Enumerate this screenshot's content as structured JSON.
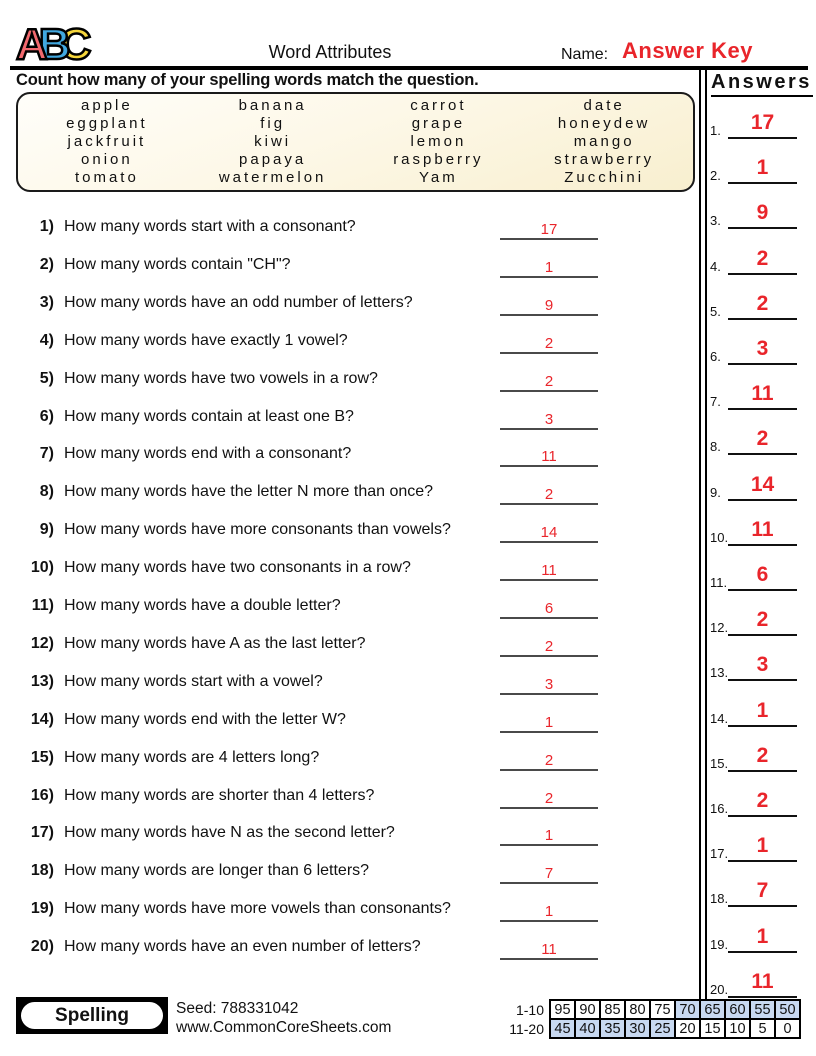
{
  "header": {
    "logo_letters": [
      {
        "char": "A",
        "color": "#f2696e"
      },
      {
        "char": "B",
        "color": "#41a8e0"
      },
      {
        "char": "C",
        "color": "#f6d63c"
      }
    ],
    "title": "Word Attributes",
    "name_label": "Name:",
    "name_value": "Answer Key"
  },
  "instruction": "Count how many of your spelling words match the question.",
  "word_bank": {
    "rows": [
      [
        "apple",
        "banana",
        "carrot",
        "date"
      ],
      [
        "eggplant",
        "fig",
        "grape",
        "honeydew"
      ],
      [
        "jackfruit",
        "kiwi",
        "lemon",
        "mango"
      ],
      [
        "onion",
        "papaya",
        "raspberry",
        "strawberry"
      ],
      [
        "tomato",
        "watermelon",
        "Yam",
        "Zucchini"
      ]
    ]
  },
  "questions": [
    {
      "num": "1)",
      "text": "How many words start with a consonant?",
      "answer": "17"
    },
    {
      "num": "2)",
      "text": "How many words contain \"CH\"?",
      "answer": "1"
    },
    {
      "num": "3)",
      "text": "How many words have an odd number of letters?",
      "answer": "9"
    },
    {
      "num": "4)",
      "text": "How many words have exactly 1 vowel?",
      "answer": "2"
    },
    {
      "num": "5)",
      "text": "How many words have two vowels in a row?",
      "answer": "2"
    },
    {
      "num": "6)",
      "text": "How many words contain at least one B?",
      "answer": "3"
    },
    {
      "num": "7)",
      "text": "How many words end with a consonant?",
      "answer": "11"
    },
    {
      "num": "8)",
      "text": "How many words have the letter N more than once?",
      "answer": "2"
    },
    {
      "num": "9)",
      "text": "How many words have more consonants than vowels?",
      "answer": "14"
    },
    {
      "num": "10)",
      "text": "How many words have two consonants in a row?",
      "answer": "11"
    },
    {
      "num": "11)",
      "text": "How many words have a double letter?",
      "answer": "6"
    },
    {
      "num": "12)",
      "text": "How many words have A as the last letter?",
      "answer": "2"
    },
    {
      "num": "13)",
      "text": "How many words start with a vowel?",
      "answer": "3"
    },
    {
      "num": "14)",
      "text": "How many words end with the letter W?",
      "answer": "1"
    },
    {
      "num": "15)",
      "text": "How many words are 4 letters long?",
      "answer": "2"
    },
    {
      "num": "16)",
      "text": "How many words are shorter than 4 letters?",
      "answer": "2"
    },
    {
      "num": "17)",
      "text": "How many words have N as the second letter?",
      "answer": "1"
    },
    {
      "num": "18)",
      "text": "How many words are longer than 6 letters?",
      "answer": "7"
    },
    {
      "num": "19)",
      "text": "How many words have more vowels than consonants?",
      "answer": "1"
    },
    {
      "num": "20)",
      "text": "How many words have an even number of letters?",
      "answer": "11"
    }
  ],
  "answers_panel": {
    "title": "Answers",
    "items": [
      {
        "num": "1.",
        "value": "17"
      },
      {
        "num": "2.",
        "value": "1"
      },
      {
        "num": "3.",
        "value": "9"
      },
      {
        "num": "4.",
        "value": "2"
      },
      {
        "num": "5.",
        "value": "2"
      },
      {
        "num": "6.",
        "value": "3"
      },
      {
        "num": "7.",
        "value": "11"
      },
      {
        "num": "8.",
        "value": "2"
      },
      {
        "num": "9.",
        "value": "14"
      },
      {
        "num": "10.",
        "value": "11"
      },
      {
        "num": "11.",
        "value": "6"
      },
      {
        "num": "12.",
        "value": "2"
      },
      {
        "num": "13.",
        "value": "3"
      },
      {
        "num": "14.",
        "value": "1"
      },
      {
        "num": "15.",
        "value": "2"
      },
      {
        "num": "16.",
        "value": "2"
      },
      {
        "num": "17.",
        "value": "1"
      },
      {
        "num": "18.",
        "value": "7"
      },
      {
        "num": "19.",
        "value": "1"
      },
      {
        "num": "20.",
        "value": "11"
      }
    ]
  },
  "footer": {
    "badge": "Spelling",
    "seed": "Seed: 788331042",
    "site": "www.CommonCoreSheets.com",
    "score_table": {
      "rows": [
        {
          "label": "1-10",
          "values": [
            "95",
            "90",
            "85",
            "80",
            "75",
            "70",
            "65",
            "60",
            "55",
            "50"
          ],
          "highlight": [
            false,
            false,
            false,
            false,
            false,
            true,
            true,
            true,
            true,
            true
          ]
        },
        {
          "label": "11-20",
          "values": [
            "45",
            "40",
            "35",
            "30",
            "25",
            "20",
            "15",
            "10",
            "5",
            "0"
          ],
          "highlight": [
            true,
            true,
            true,
            true,
            true,
            false,
            false,
            false,
            false,
            false
          ]
        }
      ]
    }
  },
  "colors": {
    "accent_red": "#e9252b",
    "score_highlight_blue": "#c8d9f1",
    "word_box_top": "#fffefa",
    "word_box_bottom": "#f8efcf"
  }
}
